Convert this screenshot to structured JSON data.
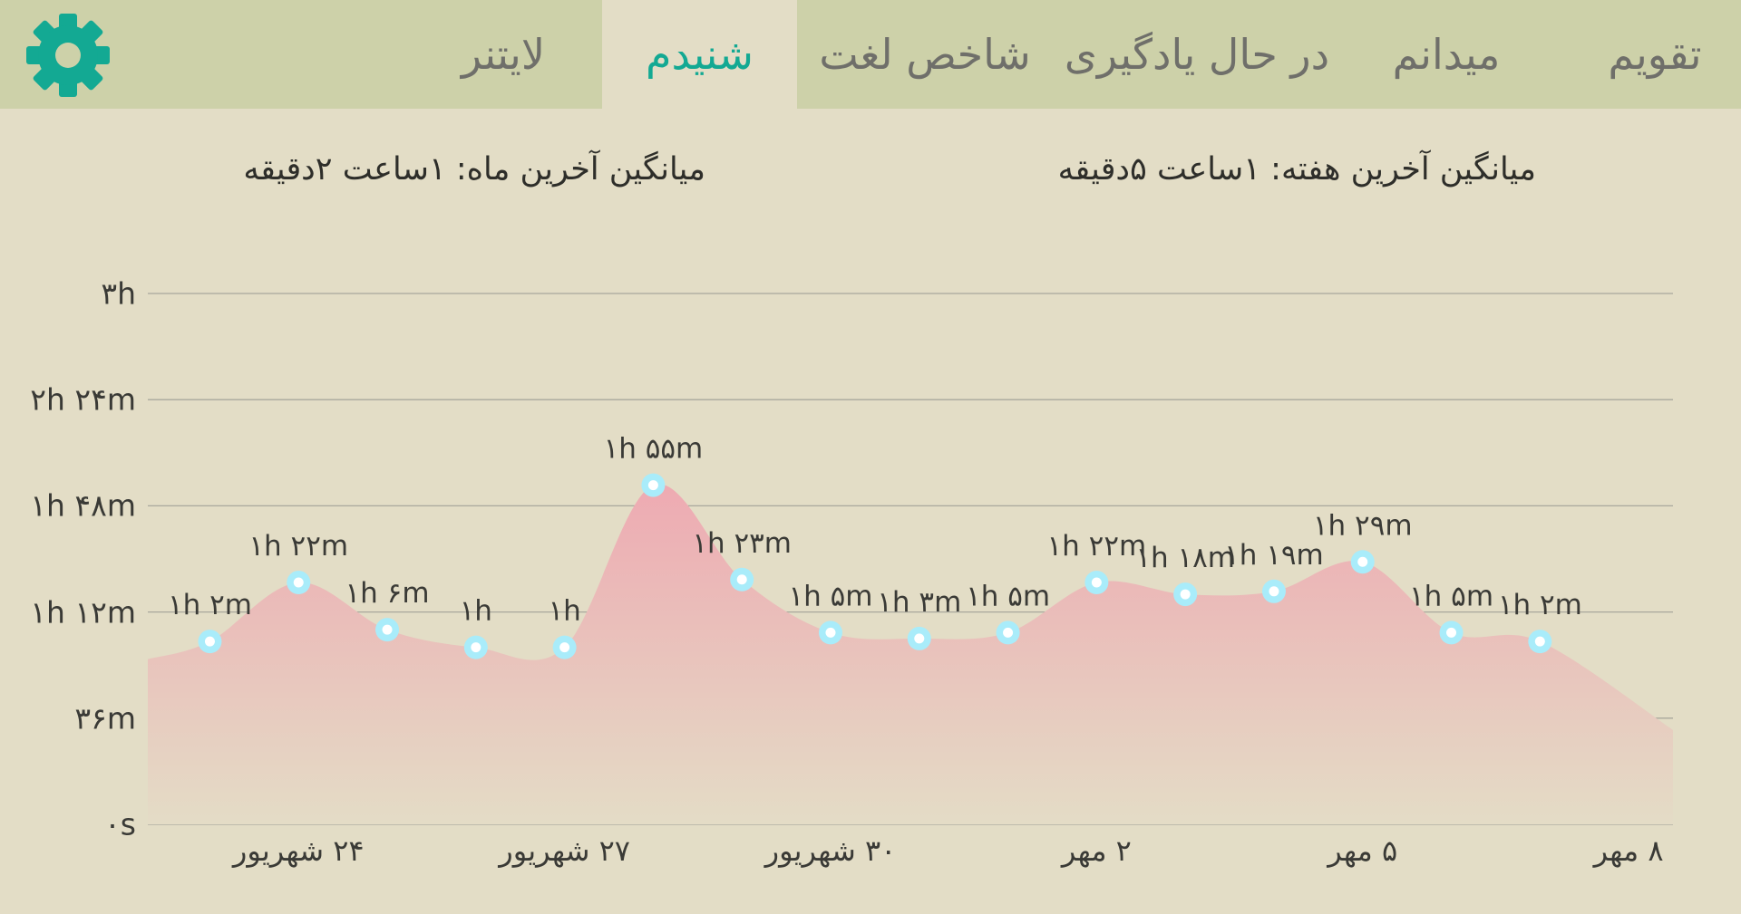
{
  "tabs": [
    {
      "id": "calendar",
      "label": "تقویم",
      "active": false
    },
    {
      "id": "known",
      "label": "میدانم",
      "active": false
    },
    {
      "id": "learning",
      "label": "در حال یادگیری",
      "active": false
    },
    {
      "id": "word-index",
      "label": "شاخص لغت",
      "active": false
    },
    {
      "id": "listened",
      "label": "شنیدم",
      "active": true
    },
    {
      "id": "lightner",
      "label": "لایتنر",
      "active": false
    }
  ],
  "settings": {
    "icon": "gear-icon",
    "color": "#13a993"
  },
  "summary": {
    "weekly_average": "میانگین آخرین هفته: ۱ساعت  ۵دقیقه",
    "monthly_average": "میانگین آخرین ماه: ۱ساعت  ۲دقیقه"
  },
  "colors": {
    "accent": "#13a993",
    "area_top": "#eeaab2",
    "area_bottom": "#e4dcc6",
    "point": "#a9ecfa",
    "topbar": "#cdd1a9",
    "background": "#e3ddc6"
  },
  "chart_data": {
    "type": "area",
    "y_unit": "minutes",
    "ylim": [
      0,
      180
    ],
    "y_ticks": [
      {
        "value": 0,
        "label": "۰s"
      },
      {
        "value": 36,
        "label": "۳۶m"
      },
      {
        "value": 72,
        "label": "۱h ۱۲m"
      },
      {
        "value": 108,
        "label": "۱h ۴۸m"
      },
      {
        "value": 144,
        "label": "۲h ۲۴m"
      },
      {
        "value": 180,
        "label": "۳h"
      }
    ],
    "x_ticks": [
      {
        "x": 24,
        "label": "۲۴ شهریور"
      },
      {
        "x": 27,
        "label": "۲۷ شهریور"
      },
      {
        "x": 30,
        "label": "۳۰ شهریور"
      },
      {
        "x": 33,
        "label": "۲ مهر"
      },
      {
        "x": 36,
        "label": "۵ مهر"
      },
      {
        "x": 39,
        "label": "۸ مهر"
      }
    ],
    "xlim": [
      22.3,
      39.5
    ],
    "grid": true,
    "series": [
      {
        "points": [
          {
            "x": 22.3,
            "y": 56
          },
          {
            "x": 23,
            "y": 62,
            "label": "۱h ۲m"
          },
          {
            "x": 24,
            "y": 82,
            "label": "۱h ۲۲m"
          },
          {
            "x": 25,
            "y": 66,
            "label": "۱h ۶m"
          },
          {
            "x": 26,
            "y": 60,
            "label": "۱h"
          },
          {
            "x": 27,
            "y": 60,
            "label": "۱h"
          },
          {
            "x": 28,
            "y": 115,
            "label": "۱h ۵۵m"
          },
          {
            "x": 29,
            "y": 83,
            "label": "۱h ۲۳m"
          },
          {
            "x": 30,
            "y": 65,
            "label": "۱h ۵m"
          },
          {
            "x": 31,
            "y": 63,
            "label": "۱h ۳m"
          },
          {
            "x": 32,
            "y": 65,
            "label": "۱h ۵m"
          },
          {
            "x": 33,
            "y": 82,
            "label": "۱h ۲۲m"
          },
          {
            "x": 34,
            "y": 78,
            "label": "۱h ۱۸m"
          },
          {
            "x": 35,
            "y": 79,
            "label": "۱h ۱۹m"
          },
          {
            "x": 36,
            "y": 89,
            "label": "۱h ۲۹m"
          },
          {
            "x": 37,
            "y": 65,
            "label": "۱h ۵m"
          },
          {
            "x": 38,
            "y": 62,
            "label": "۱h ۲m"
          },
          {
            "x": 39.5,
            "y": 32
          }
        ]
      }
    ]
  }
}
